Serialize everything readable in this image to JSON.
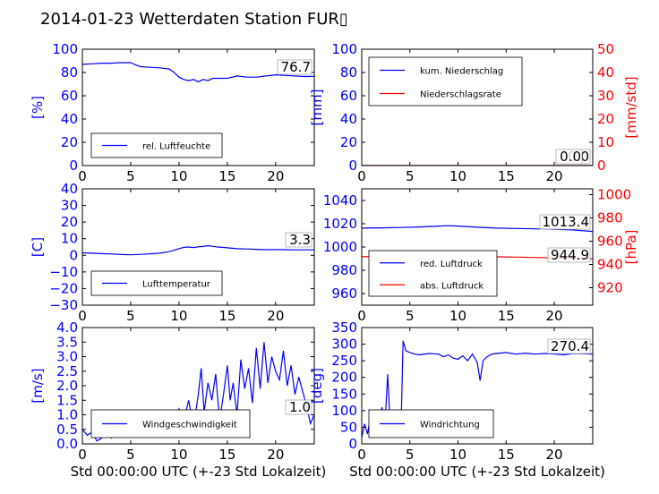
{
  "title": "2014-01-23 Wetterdaten Station FUR▯",
  "colors": {
    "primary": "#0000ff",
    "secondary": "#ff0000",
    "axis": "#000000",
    "background": "#ffffff"
  },
  "chart_data": [
    {
      "id": "humidity",
      "type": "line",
      "xlim": [
        0,
        24
      ],
      "xticks": [
        "0",
        "5",
        "10",
        "15",
        "20"
      ],
      "ylim": [
        0,
        100
      ],
      "yticks": [
        "0",
        "20",
        "40",
        "60",
        "80",
        "100"
      ],
      "ylabel": "[%]",
      "grid": false,
      "legend_position": "lower-left",
      "value_label": "76.7",
      "series": [
        {
          "name": "rel. Luftfeuchte",
          "color": "#0000ff",
          "x": [
            0,
            1,
            2,
            3,
            4,
            5,
            5.5,
            6,
            7,
            8,
            9,
            9.5,
            10,
            10.5,
            11,
            11.5,
            12,
            12.5,
            13,
            13.5,
            14,
            15,
            16,
            17,
            18,
            19,
            20,
            21,
            22,
            23,
            24
          ],
          "y": [
            87,
            87.5,
            88,
            88,
            88.5,
            88.5,
            86.5,
            85,
            84.5,
            84,
            83,
            80,
            76,
            74,
            73,
            74,
            72,
            74,
            73,
            75,
            75,
            75,
            77,
            76,
            76,
            77,
            78,
            77.5,
            77,
            76.5,
            76.7
          ]
        }
      ]
    },
    {
      "id": "precipitation",
      "type": "line",
      "xlim": [
        0,
        24
      ],
      "xticks": [
        "0",
        "5",
        "10",
        "15",
        "20"
      ],
      "ylim": [
        0,
        100
      ],
      "yticks": [
        "0",
        "20",
        "40",
        "60",
        "80",
        "100"
      ],
      "ylabel": "[mm]",
      "y2lim": [
        0,
        50
      ],
      "y2ticks": [
        "0",
        "10",
        "20",
        "30",
        "40",
        "50"
      ],
      "y2label": "[mm/std]",
      "grid": false,
      "legend_position": "upper-left",
      "value_labels": [
        "0.0",
        "0.0"
      ],
      "series": [
        {
          "name": "kum. Niederschlag",
          "color": "#0000ff",
          "axis": "left",
          "x": [
            0,
            24
          ],
          "y": [
            0,
            0
          ]
        },
        {
          "name": "Niederschlagsrate",
          "color": "#ff0000",
          "axis": "right",
          "x": [
            0,
            24
          ],
          "y": [
            0,
            0
          ]
        }
      ]
    },
    {
      "id": "temperature",
      "type": "line",
      "xlim": [
        0,
        24
      ],
      "xticks": [
        "0",
        "5",
        "10",
        "15",
        "20"
      ],
      "ylim": [
        -30,
        40
      ],
      "yticks": [
        "−30",
        "−20",
        "−10",
        "0",
        "10",
        "20",
        "30",
        "40"
      ],
      "ylabel": "[C]",
      "grid": false,
      "legend_position": "lower-left",
      "value_label": "3.3",
      "series": [
        {
          "name": "Lufttemperatur",
          "color": "#0000ff",
          "x": [
            0,
            1,
            2,
            3,
            4,
            5,
            6,
            7,
            8,
            9,
            10,
            10.5,
            11,
            11.5,
            12,
            12.5,
            13,
            13.5,
            14,
            15,
            16,
            17,
            18,
            19,
            20,
            21,
            22,
            23,
            24
          ],
          "y": [
            1.5,
            1.3,
            1,
            0.8,
            0.5,
            0.3,
            0.6,
            0.9,
            1.3,
            2.2,
            4,
            4.8,
            5,
            4.7,
            5.1,
            5.3,
            5.8,
            5.4,
            5,
            4.5,
            4,
            3.8,
            3.6,
            3.4,
            3.5,
            3.4,
            3.3,
            3.3,
            3.3
          ]
        }
      ]
    },
    {
      "id": "pressure",
      "type": "line",
      "xlim": [
        0,
        24
      ],
      "xticks": [
        "0",
        "5",
        "10",
        "15",
        "20"
      ],
      "ylim": [
        950,
        1050
      ],
      "yticks": [
        "960",
        "980",
        "1000",
        "1020",
        "1040"
      ],
      "y2lim": [
        905,
        1005
      ],
      "y2ticks": [
        "920",
        "940",
        "960",
        "980",
        "1000"
      ],
      "y2label": "[hPa]",
      "grid": false,
      "legend_position": "lower-left",
      "value_labels": [
        "1013.4",
        "944.9"
      ],
      "series": [
        {
          "name": "red. Luftdruck",
          "color": "#0000ff",
          "axis": "left",
          "x": [
            0,
            2,
            4,
            6,
            8,
            9,
            10,
            12,
            14,
            16,
            18,
            20,
            22,
            24
          ],
          "y": [
            1016.2,
            1016.5,
            1016.8,
            1017.2,
            1018,
            1018.3,
            1018,
            1017,
            1016.2,
            1015.9,
            1015.6,
            1015.2,
            1014.6,
            1013.4
          ]
        },
        {
          "name": "abs. Luftdruck",
          "color": "#ff0000",
          "axis": "right",
          "x": [
            0,
            2,
            4,
            6,
            8,
            9,
            10,
            12,
            14,
            16,
            18,
            20,
            22,
            24
          ],
          "y": [
            946.6,
            946.9,
            947.2,
            947.6,
            948.2,
            948.5,
            948.2,
            947.4,
            946.6,
            946.3,
            946,
            945.6,
            945.3,
            944.9
          ]
        }
      ]
    },
    {
      "id": "windspeed",
      "type": "line",
      "xlim": [
        0,
        24
      ],
      "xticks": [
        "0",
        "5",
        "10",
        "15",
        "20"
      ],
      "xlabel": "Std 00:00:00 UTC (+-23 Std Lokalzeit)",
      "ylim": [
        0,
        4
      ],
      "yticks": [
        "0.0",
        "0.5",
        "1.0",
        "1.5",
        "2.0",
        "2.5",
        "3.0",
        "3.5",
        "4.0"
      ],
      "ylabel": "[m/s]",
      "grid": false,
      "legend_position": "lower-left",
      "value_label": "1.0",
      "series": [
        {
          "name": "Windgeschwindigkeit",
          "color": "#0000ff",
          "x": [
            0,
            0.5,
            1,
            1.5,
            2,
            2.5,
            3,
            3.5,
            4,
            4.5,
            5,
            5.5,
            6,
            6.5,
            7,
            7.5,
            8,
            8.5,
            9,
            9.5,
            10,
            10.5,
            11,
            11.5,
            12,
            12.3,
            12.6,
            13,
            13.4,
            13.8,
            14.2,
            14.6,
            15,
            15.3,
            15.6,
            16,
            16.4,
            16.8,
            17.2,
            17.6,
            18,
            18.4,
            18.8,
            19.2,
            19.6,
            20,
            20.4,
            20.8,
            21.2,
            21.6,
            22,
            22.4,
            22.8,
            23.2,
            23.6,
            24
          ],
          "y": [
            0.5,
            0.3,
            0.4,
            0.1,
            0.2,
            0.4,
            0.2,
            0.5,
            0.9,
            0.6,
            1.1,
            0.7,
            1.0,
            0.8,
            1.1,
            0.6,
            0.9,
            0.7,
            1.1,
            0.5,
            1.2,
            0.8,
            1.5,
            0.6,
            1.7,
            2.6,
            1.1,
            2.1,
            1.5,
            2.4,
            0.8,
            1.7,
            2.7,
            1.5,
            2.1,
            1.0,
            2.9,
            1.9,
            2.6,
            1.4,
            3.3,
            1.9,
            3.5,
            2.1,
            3.0,
            2.5,
            2.2,
            3.2,
            2.0,
            2.7,
            1.7,
            2.3,
            1.8,
            1.3,
            0.7,
            1.0
          ]
        }
      ]
    },
    {
      "id": "winddirection",
      "type": "line",
      "xlim": [
        0,
        24
      ],
      "xticks": [
        "0",
        "5",
        "10",
        "15",
        "20"
      ],
      "xlabel": "Std 00:00:00 UTC (+-23 Std Lokalzeit)",
      "ylim": [
        0,
        350
      ],
      "yticks": [
        "0",
        "50",
        "100",
        "150",
        "200",
        "250",
        "300",
        "350"
      ],
      "ylabel": "[deg]",
      "grid": false,
      "legend_position": "lower-left",
      "value_label": "270.4",
      "series": [
        {
          "name": "Windrichtung",
          "color": "#0000ff",
          "x": [
            0,
            0.3,
            0.6,
            0.9,
            1.2,
            1.5,
            1.8,
            2.1,
            2.4,
            2.7,
            2.9,
            3.0,
            3.3,
            3.6,
            3.9,
            4.1,
            4.3,
            4.6,
            5,
            5.5,
            6,
            7,
            8,
            8.5,
            9,
            9.5,
            10,
            10.5,
            11,
            11.5,
            12,
            12.3,
            12.6,
            13,
            13.5,
            14,
            15,
            16,
            17,
            18,
            19,
            20,
            21,
            22,
            23,
            24
          ],
          "y": [
            20,
            60,
            30,
            80,
            40,
            90,
            60,
            110,
            50,
            210,
            90,
            60,
            80,
            100,
            40,
            70,
            310,
            280,
            275,
            270,
            268,
            272,
            270,
            262,
            268,
            258,
            255,
            265,
            250,
            270,
            245,
            190,
            250,
            262,
            270,
            272,
            275,
            270,
            273,
            270,
            272,
            270,
            268,
            272,
            271,
            270.4
          ]
        }
      ]
    }
  ]
}
